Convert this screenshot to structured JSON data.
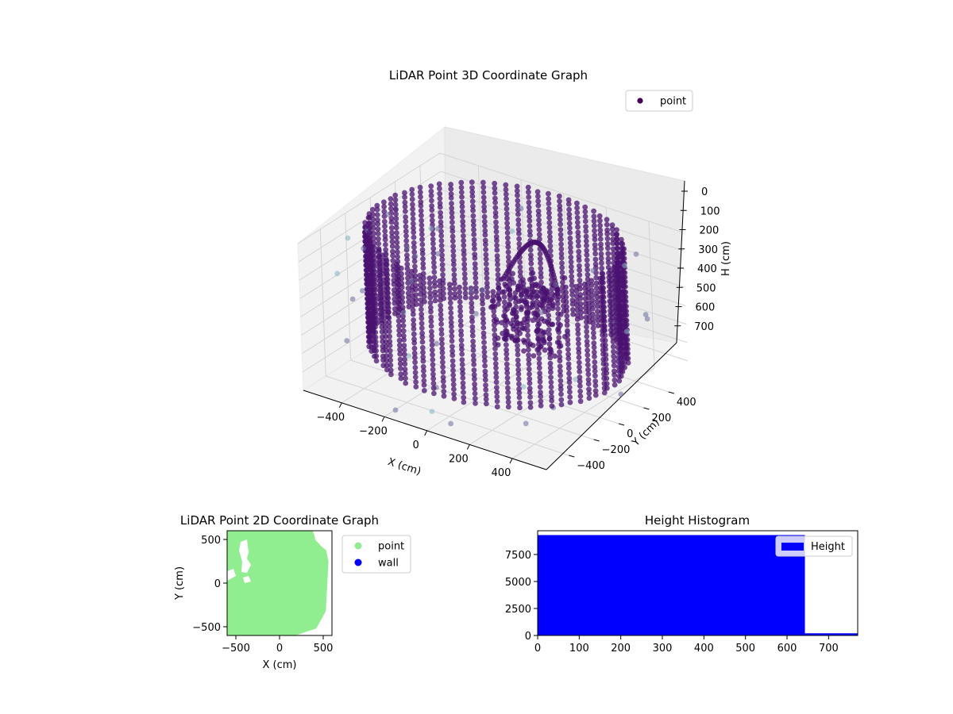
{
  "chart_data": [
    {
      "type": "scatter",
      "title": "LiDAR Point 3D Coordinate Graph",
      "xlabel": "X (cm)",
      "ylabel": "Y (cm)",
      "zlabel": "H (cm)",
      "xticks": [
        -400,
        -200,
        0,
        200,
        400
      ],
      "yticks": [
        -400,
        -200,
        0,
        200,
        400
      ],
      "zticks": [
        0,
        100,
        200,
        300,
        400,
        500,
        600,
        700
      ],
      "xlim": [
        -580,
        560
      ],
      "ylim": [
        -580,
        560
      ],
      "zlim": [
        0,
        800
      ],
      "z_inverted": true,
      "grid": true,
      "legend": {
        "entries": [
          "point"
        ],
        "placement": "top-right"
      },
      "colors": {
        "points": "#4a1170",
        "points_far": "#6a6b9a",
        "points_faint": "#86b4c0"
      },
      "description_of_shape": "cylindrical wall ring of radius ~520 cm spanning heights 0-640 cm with an inner obstacle"
    },
    {
      "type": "scatter",
      "title": "LiDAR Point 2D Coordinate Graph",
      "xlabel": "X (cm)",
      "ylabel": "Y (cm)",
      "xticks": [
        -500,
        0,
        500
      ],
      "yticks": [
        -500,
        0,
        500
      ],
      "xlim": [
        -600,
        600
      ],
      "ylim": [
        -600,
        600
      ],
      "legend": {
        "entries": [
          "point",
          "wall"
        ],
        "placement": "outside-right"
      },
      "series": [
        {
          "name": "point",
          "color": "#90ee90"
        },
        {
          "name": "wall",
          "color": "#0000ff"
        }
      ]
    },
    {
      "type": "bar",
      "title": "Height Histogram",
      "xticks": [
        0,
        100,
        200,
        300,
        400,
        500,
        600,
        700
      ],
      "yticks": [
        0,
        2500,
        5000,
        7500
      ],
      "xlim": [
        0,
        770
      ],
      "ylim": [
        0,
        9700
      ],
      "legend": {
        "entries": [
          "Height"
        ],
        "placement": "top-right"
      },
      "bins": [
        {
          "x0": 0,
          "x1": 643,
          "count": 9300
        },
        {
          "x0": 643,
          "x1": 770,
          "count": 200
        }
      ],
      "color": "#0000ff"
    }
  ]
}
